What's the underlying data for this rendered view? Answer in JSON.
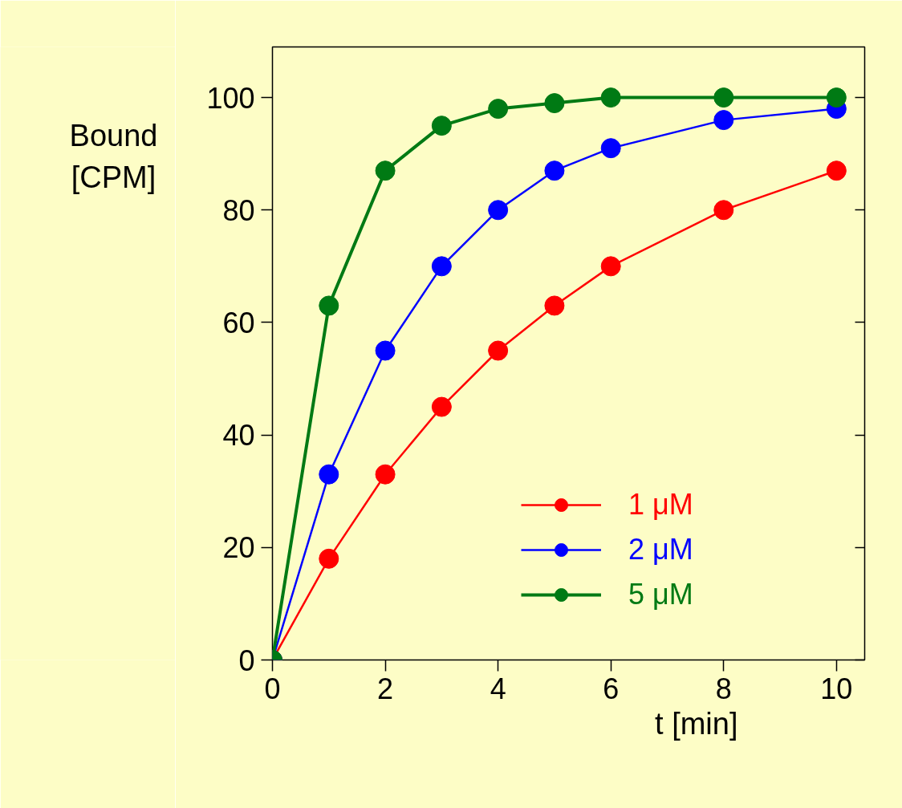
{
  "chart_data": {
    "type": "line",
    "xlabel": "t [min]",
    "ylabel": "Bound [CPM]",
    "x": [
      0,
      1,
      2,
      3,
      4,
      5,
      6,
      8,
      10
    ],
    "series": [
      {
        "name": "1 μM",
        "color": "#ff0000",
        "values": [
          0,
          18,
          33,
          45,
          55,
          63,
          70,
          80,
          87
        ]
      },
      {
        "name": "2 μM",
        "color": "#0000ff",
        "values": [
          0,
          33,
          55,
          70,
          80,
          87,
          91,
          96,
          98
        ]
      },
      {
        "name": "5 μM",
        "color": "#007a14",
        "values": [
          0,
          63,
          87,
          95,
          98,
          99,
          100,
          100,
          100
        ]
      }
    ],
    "xlim": [
      0,
      10.5
    ],
    "ylim": [
      0,
      109
    ],
    "xticks": [
      0,
      2,
      4,
      6,
      8,
      10
    ],
    "yticks": [
      0,
      20,
      40,
      60,
      80,
      100
    ],
    "grid": false,
    "legend": "bottom right",
    "marker": "circle",
    "line_style": "solid"
  }
}
